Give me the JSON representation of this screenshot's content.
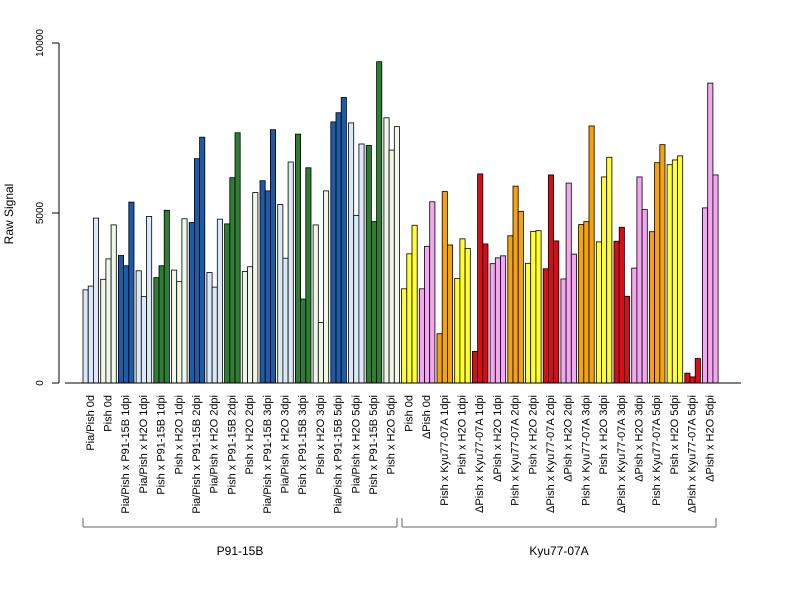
{
  "chart_data": {
    "type": "bar",
    "title": "",
    "ylabel": "Raw Signal",
    "xlabel": "",
    "ylim": [
      0,
      10000
    ],
    "yticks": [
      0,
      5000,
      10000
    ],
    "grid": false,
    "legend": "none",
    "groups": [
      {
        "name": "P91-15B",
        "categories": [
          0,
          19
        ]
      },
      {
        "name": "Kyu77-07A",
        "categories": [
          20,
          37
        ]
      }
    ],
    "categories": [
      {
        "label": "Pia/Pish 0d",
        "color": "#dbe8f7",
        "values": [
          2740,
          2850,
          4850
        ]
      },
      {
        "label": "Pish 0d",
        "color": "#eef7e8",
        "values": [
          3050,
          3650,
          4650
        ]
      },
      {
        "label": "Pia/Pish x P91-15B 1dpi",
        "color": "#1f5aa6",
        "values": [
          3750,
          3450,
          5320
        ]
      },
      {
        "label": "Pia/Pish x H2O 1dpi",
        "color": "#dbe8f7",
        "values": [
          3300,
          2540,
          4900
        ]
      },
      {
        "label": "Pish x P91-15B 1dpi",
        "color": "#2e7d32",
        "values": [
          3100,
          3450,
          5080
        ]
      },
      {
        "label": "Pish x H2O 1dpi",
        "color": "#eef7e8",
        "values": [
          3320,
          2980,
          4830
        ]
      },
      {
        "label": "Pia/Pish x P91-15B 2dpi",
        "color": "#1f5aa6",
        "values": [
          4720,
          6600,
          7230
        ]
      },
      {
        "label": "Pia/Pish x H2O 2dpi",
        "color": "#dbe8f7",
        "values": [
          3250,
          2820,
          4820
        ]
      },
      {
        "label": "Pish x P91-15B 2dpi",
        "color": "#2e7d32",
        "values": [
          4680,
          6040,
          7360
        ]
      },
      {
        "label": "Pish x H2O 2dpi",
        "color": "#eef7e8",
        "values": [
          3280,
          3420,
          5600
        ]
      },
      {
        "label": "Pia/Pish x P91-15B 3dpi",
        "color": "#1f5aa6",
        "values": [
          5950,
          5650,
          7450
        ]
      },
      {
        "label": "Pia/Pish x H2O 3dpi",
        "color": "#dbe8f7",
        "values": [
          5250,
          3670,
          6500
        ]
      },
      {
        "label": "Pish x P91-15B 3dpi",
        "color": "#2e7d32",
        "values": [
          7320,
          2470,
          6330
        ]
      },
      {
        "label": "Pish x H2O 3dpi",
        "color": "#eef7e8",
        "values": [
          4650,
          1780,
          5650
        ]
      },
      {
        "label": "Pia/Pish x P91-15B 5dpi",
        "color": "#1f5aa6",
        "values": [
          7680,
          7950,
          8400
        ]
      },
      {
        "label": "Pia/Pish x H2O 5dpi",
        "color": "#dbe8f7",
        "values": [
          7650,
          4930,
          7030
        ]
      },
      {
        "label": "Pish x P91-15B 5dpi",
        "color": "#2e7d32",
        "values": [
          6990,
          4750,
          9450
        ]
      },
      {
        "label": "Pish x H2O 5dpi",
        "color": "#eef7e8",
        "values": [
          7800,
          6850,
          7540
        ]
      },
      {
        "label": "Pish 0d",
        "color": "#ffff33",
        "values": [
          2770,
          3800,
          4640
        ]
      },
      {
        "label": "ΔPish 0d",
        "color": "#f4a6f0",
        "values": [
          2770,
          4020,
          5330
        ]
      },
      {
        "label": "Pish x Kyu77-07A 1dpi",
        "color": "#f5a20f",
        "values": [
          1450,
          5630,
          4060
        ]
      },
      {
        "label": "Pish x H2O 1dpi",
        "color": "#ffff33",
        "values": [
          3070,
          4240,
          3960
        ]
      },
      {
        "label": "ΔPish x Kyu77-07A 1dpi",
        "color": "#d40f1a",
        "values": [
          930,
          6150,
          4090
        ]
      },
      {
        "label": "ΔPish x H2O 1dpi",
        "color": "#f4a6f0",
        "values": [
          3510,
          3680,
          3740
        ]
      },
      {
        "label": "Pish x Kyu77-07A 2dpi",
        "color": "#f5a20f",
        "values": [
          4330,
          5790,
          5050
        ]
      },
      {
        "label": "Pish x H2O 2dpi",
        "color": "#ffff33",
        "values": [
          3520,
          4460,
          4480
        ]
      },
      {
        "label": "ΔPish x Kyu77-07A 2dpi",
        "color": "#d40f1a",
        "values": [
          3360,
          6120,
          4180
        ]
      },
      {
        "label": "ΔPish x H2O 2dpi",
        "color": "#f4a6f0",
        "values": [
          3060,
          5880,
          3790
        ]
      },
      {
        "label": "Pish x Kyu77-07A 3dpi",
        "color": "#f5a20f",
        "values": [
          4660,
          4750,
          7560
        ]
      },
      {
        "label": "Pish x H2O 3dpi",
        "color": "#ffff33",
        "values": [
          4150,
          6060,
          6640
        ]
      },
      {
        "label": "ΔPish x Kyu77-07A 3dpi",
        "color": "#d40f1a",
        "values": [
          4170,
          4580,
          2550
        ]
      },
      {
        "label": "ΔPish x H2O 3dpi",
        "color": "#f4a6f0",
        "values": [
          3380,
          6060,
          5100
        ]
      },
      {
        "label": "Pish x Kyu77-07A 5dpi",
        "color": "#f5a20f",
        "values": [
          4450,
          6480,
          7010
        ]
      },
      {
        "label": "Pish x H2O 5dpi",
        "color": "#ffff33",
        "values": [
          6420,
          6560,
          6680
        ]
      },
      {
        "label": "ΔPish x Kyu77-07A 5dpi",
        "color": "#d40f1a",
        "values": [
          290,
          180,
          720
        ]
      },
      {
        "label": "ΔPish x H2O 5dpi",
        "color": "#f4a6f0",
        "values": [
          5150,
          8820,
          6120
        ]
      }
    ]
  }
}
